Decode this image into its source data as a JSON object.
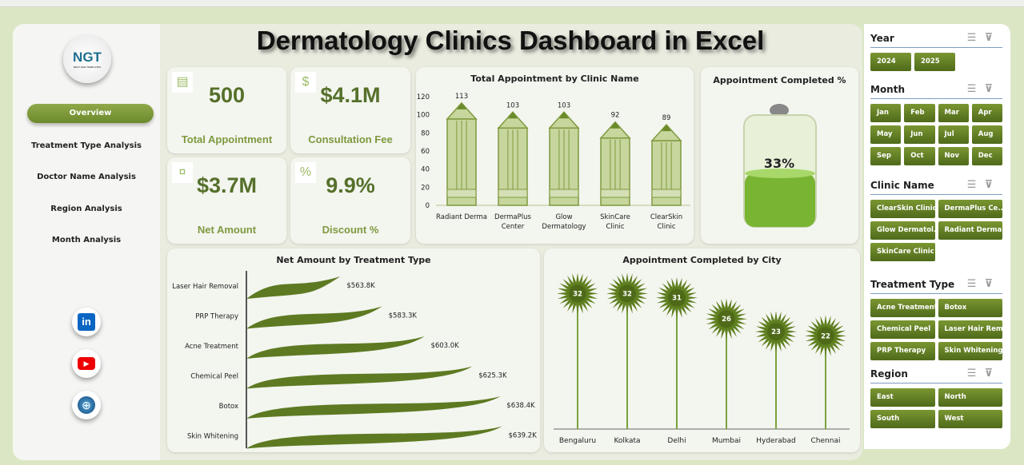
{
  "title": "Dermatology Clinics Dashboard in Excel",
  "logo": {
    "text": "NGT",
    "sub": "NEXT GEN TEMPLATES"
  },
  "nav": [
    "Overview",
    "Treatment Type Analysis",
    "Doctor Name Analysis",
    "Region Analysis",
    "Month Analysis"
  ],
  "social": [
    "linkedin-icon",
    "youtube-icon",
    "globe-icon"
  ],
  "kpis": [
    {
      "value": "500",
      "label": "Total Appointment",
      "icon": "clipboard-icon"
    },
    {
      "value": "$4.1M",
      "label": "Consultation Fee",
      "icon": "money-hand-icon"
    },
    {
      "value": "$3.7M",
      "label": "Net Amount",
      "icon": "cash-icon"
    },
    {
      "value": "9.9%",
      "label": "Discount %",
      "icon": "discount-icon"
    }
  ],
  "colors": {
    "accent": "#6c8a2c",
    "kpi_text": "#55702a",
    "bar": "#c3d39a"
  },
  "chart_data": [
    {
      "type": "bar",
      "title": "Total Appointment by Clinic Name",
      "categories": [
        "Radiant Derma",
        "DermaPlus Center",
        "Glow Dermatology",
        "SkinCare Clinic",
        "ClearSkin Clinic"
      ],
      "values": [
        113,
        103,
        103,
        92,
        89
      ],
      "yticks": [
        "0",
        "20",
        "40",
        "60",
        "80",
        "100",
        "120"
      ],
      "ylim": [
        0,
        120
      ]
    },
    {
      "type": "gauge",
      "title": "Appointment Completed %",
      "value": 33,
      "label": "33%"
    },
    {
      "type": "bar",
      "orientation": "horizontal",
      "title": "Net Amount by Treatment Type",
      "categories": [
        "Laser Hair Removal",
        "PRP Therapy",
        "Acne Treatment",
        "Chemical Peel",
        "Botox",
        "Skin Whitening"
      ],
      "values": [
        563.8,
        583.3,
        603.0,
        625.3,
        638.4,
        639.2
      ],
      "labels": [
        "$563.8K",
        "$583.3K",
        "$603.0K",
        "$625.3K",
        "$638.4K",
        "$639.2K"
      ]
    },
    {
      "type": "lollipop",
      "title": "Appointment Completed by City",
      "categories": [
        "Bengaluru",
        "Kolkata",
        "Delhi",
        "Mumbai",
        "Hyderabad",
        "Chennai"
      ],
      "values": [
        32,
        32,
        31,
        26,
        23,
        22
      ]
    }
  ],
  "slicers": [
    {
      "title": "Year",
      "items": [
        "2024",
        "2025"
      ]
    },
    {
      "title": "Month",
      "items": [
        "Jan",
        "Feb",
        "Mar",
        "Apr",
        "May",
        "Jun",
        "Jul",
        "Aug",
        "Sep",
        "Oct",
        "Nov",
        "Dec"
      ]
    },
    {
      "title": "Clinic Name",
      "items": [
        "ClearSkin Clinic",
        "DermaPlus Ce...",
        "Glow Dermatol...",
        "Radiant Derma",
        "SkinCare Clinic"
      ]
    },
    {
      "title": "Treatment Type",
      "items": [
        "Acne Treatment",
        "Botox",
        "Chemical Peel",
        "Laser Hair Rem...",
        "PRP Therapy",
        "Skin Whitening"
      ]
    },
    {
      "title": "Region",
      "items": [
        "East",
        "North",
        "South",
        "West"
      ]
    }
  ]
}
